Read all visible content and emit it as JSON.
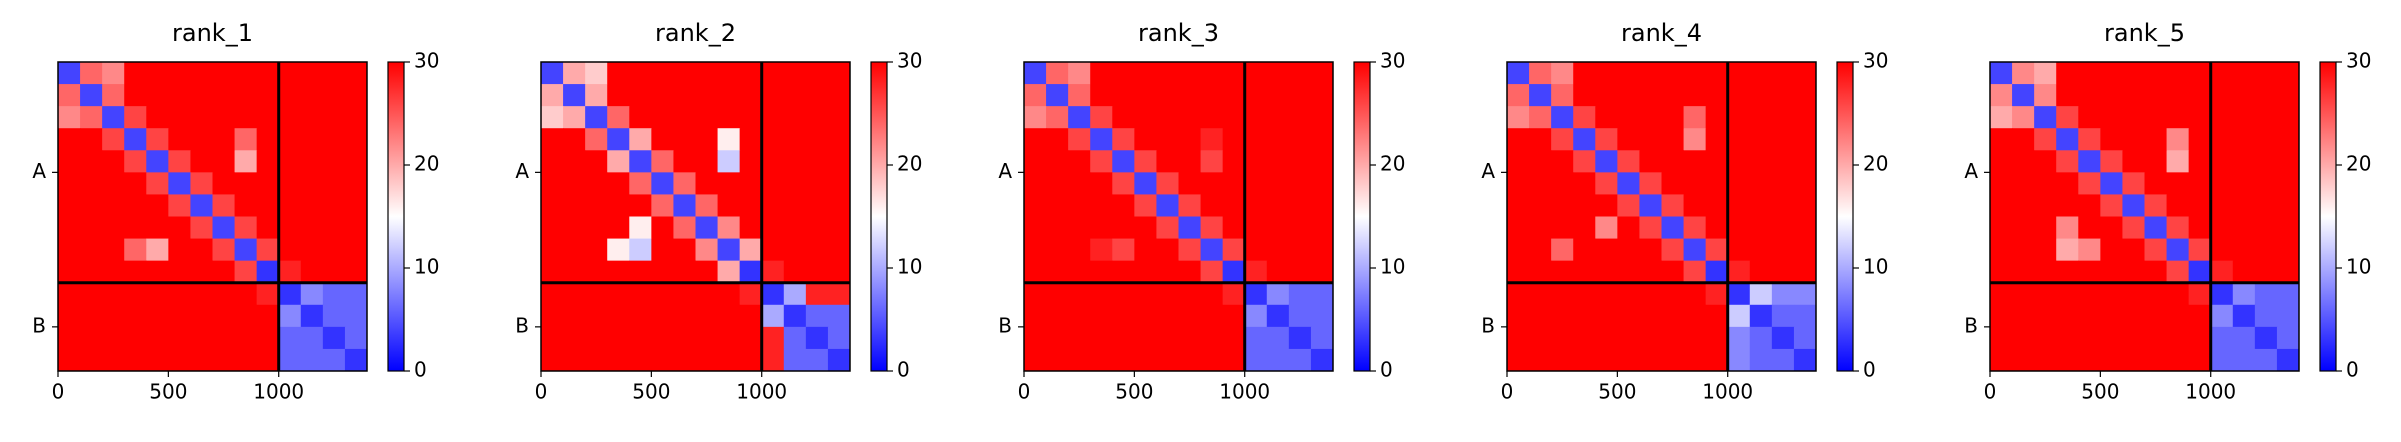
{
  "chart_data": [
    {
      "type": "heatmap",
      "title": "rank_1",
      "colormap": [
        "#0000ff",
        "#ffffff",
        "#ff0000"
      ],
      "clim": [
        0,
        30
      ],
      "cticks": [
        0,
        10,
        20,
        30
      ],
      "bins": [
        0,
        100,
        200,
        300,
        400,
        500,
        600,
        700,
        800,
        900,
        1000,
        1100,
        1200,
        1300,
        1400
      ],
      "xlim": [
        0,
        1400
      ],
      "ylim": [
        1400,
        0
      ],
      "xticks": [
        0,
        500,
        1000
      ],
      "yticks": [
        {
          "value": 500,
          "label": "A"
        },
        {
          "value": 1200,
          "label": "B"
        }
      ],
      "chain_boundaries": [
        1000
      ],
      "values": [
        [
          4,
          24,
          22,
          30,
          30,
          30,
          30,
          30,
          30,
          30,
          30,
          30,
          30,
          30
        ],
        [
          24,
          4,
          24,
          30,
          30,
          30,
          30,
          30,
          30,
          30,
          30,
          30,
          30,
          30
        ],
        [
          22,
          24,
          4,
          26,
          30,
          30,
          30,
          30,
          30,
          30,
          30,
          30,
          30,
          30
        ],
        [
          30,
          30,
          26,
          4,
          26,
          30,
          30,
          30,
          24,
          30,
          30,
          30,
          30,
          30
        ],
        [
          30,
          30,
          30,
          26,
          4,
          26,
          30,
          30,
          20,
          30,
          30,
          30,
          30,
          30
        ],
        [
          30,
          30,
          30,
          30,
          26,
          4,
          26,
          30,
          30,
          30,
          30,
          30,
          30,
          30
        ],
        [
          30,
          30,
          30,
          30,
          30,
          26,
          4,
          26,
          30,
          30,
          30,
          30,
          30,
          30
        ],
        [
          30,
          30,
          30,
          30,
          30,
          30,
          26,
          4,
          26,
          30,
          30,
          30,
          30,
          30
        ],
        [
          30,
          30,
          30,
          24,
          20,
          30,
          30,
          26,
          4,
          26,
          30,
          30,
          30,
          30
        ],
        [
          30,
          30,
          30,
          30,
          30,
          30,
          30,
          30,
          26,
          3,
          28,
          30,
          30,
          30
        ],
        [
          30,
          30,
          30,
          30,
          30,
          30,
          30,
          30,
          30,
          28,
          3,
          8,
          6,
          6
        ],
        [
          30,
          30,
          30,
          30,
          30,
          30,
          30,
          30,
          30,
          30,
          8,
          3,
          6,
          6
        ],
        [
          30,
          30,
          30,
          30,
          30,
          30,
          30,
          30,
          30,
          30,
          6,
          6,
          3,
          6
        ],
        [
          30,
          30,
          30,
          30,
          30,
          30,
          30,
          30,
          30,
          30,
          6,
          6,
          6,
          3
        ]
      ]
    },
    {
      "type": "heatmap",
      "title": "rank_2",
      "colormap": [
        "#0000ff",
        "#ffffff",
        "#ff0000"
      ],
      "clim": [
        0,
        30
      ],
      "cticks": [
        0,
        10,
        20,
        30
      ],
      "bins": [
        0,
        100,
        200,
        300,
        400,
        500,
        600,
        700,
        800,
        900,
        1000,
        1100,
        1200,
        1300,
        1400
      ],
      "xlim": [
        0,
        1400
      ],
      "ylim": [
        1400,
        0
      ],
      "xticks": [
        0,
        500,
        1000
      ],
      "yticks": [
        {
          "value": 500,
          "label": "A"
        },
        {
          "value": 1200,
          "label": "B"
        }
      ],
      "chain_boundaries": [
        1000
      ],
      "values": [
        [
          4,
          20,
          18,
          30,
          30,
          30,
          30,
          30,
          30,
          30,
          30,
          30,
          30,
          30
        ],
        [
          20,
          4,
          20,
          30,
          30,
          30,
          30,
          30,
          30,
          30,
          30,
          30,
          30,
          30
        ],
        [
          18,
          20,
          4,
          24,
          30,
          30,
          30,
          30,
          30,
          30,
          30,
          30,
          30,
          30
        ],
        [
          30,
          30,
          24,
          4,
          20,
          30,
          30,
          30,
          16,
          30,
          30,
          30,
          30,
          30
        ],
        [
          30,
          30,
          30,
          20,
          4,
          24,
          30,
          30,
          12,
          30,
          30,
          30,
          30,
          30
        ],
        [
          30,
          30,
          30,
          30,
          24,
          4,
          24,
          30,
          30,
          30,
          30,
          30,
          30,
          30
        ],
        [
          30,
          30,
          30,
          30,
          30,
          24,
          4,
          24,
          30,
          30,
          30,
          30,
          30,
          30
        ],
        [
          30,
          30,
          30,
          30,
          16,
          30,
          24,
          4,
          22,
          30,
          30,
          30,
          30,
          30
        ],
        [
          30,
          30,
          30,
          16,
          12,
          30,
          30,
          22,
          4,
          20,
          30,
          30,
          30,
          30
        ],
        [
          30,
          30,
          30,
          30,
          30,
          30,
          30,
          30,
          20,
          3,
          28,
          30,
          30,
          30
        ],
        [
          30,
          30,
          30,
          30,
          30,
          30,
          30,
          30,
          30,
          28,
          3,
          10,
          28,
          28
        ],
        [
          30,
          30,
          30,
          30,
          30,
          30,
          30,
          30,
          30,
          30,
          10,
          3,
          6,
          6
        ],
        [
          30,
          30,
          30,
          30,
          30,
          30,
          30,
          30,
          30,
          30,
          28,
          6,
          3,
          6
        ],
        [
          30,
          30,
          30,
          30,
          30,
          30,
          30,
          30,
          30,
          30,
          28,
          6,
          6,
          3
        ]
      ]
    },
    {
      "type": "heatmap",
      "title": "rank_3",
      "colormap": [
        "#0000ff",
        "#ffffff",
        "#ff0000"
      ],
      "clim": [
        0,
        30
      ],
      "cticks": [
        0,
        10,
        20,
        30
      ],
      "bins": [
        0,
        100,
        200,
        300,
        400,
        500,
        600,
        700,
        800,
        900,
        1000,
        1100,
        1200,
        1300,
        1400
      ],
      "xlim": [
        0,
        1400
      ],
      "ylim": [
        1400,
        0
      ],
      "xticks": [
        0,
        500,
        1000
      ],
      "yticks": [
        {
          "value": 500,
          "label": "A"
        },
        {
          "value": 1200,
          "label": "B"
        }
      ],
      "chain_boundaries": [
        1000
      ],
      "values": [
        [
          4,
          24,
          22,
          30,
          30,
          30,
          30,
          30,
          30,
          30,
          30,
          30,
          30,
          30
        ],
        [
          24,
          4,
          24,
          30,
          30,
          30,
          30,
          30,
          30,
          30,
          30,
          30,
          30,
          30
        ],
        [
          22,
          24,
          4,
          26,
          30,
          30,
          30,
          30,
          30,
          30,
          30,
          30,
          30,
          30
        ],
        [
          30,
          30,
          26,
          4,
          26,
          30,
          30,
          30,
          28,
          30,
          30,
          30,
          30,
          30
        ],
        [
          30,
          30,
          30,
          26,
          4,
          26,
          30,
          30,
          26,
          30,
          30,
          30,
          30,
          30
        ],
        [
          30,
          30,
          30,
          30,
          26,
          4,
          26,
          30,
          30,
          30,
          30,
          30,
          30,
          30
        ],
        [
          30,
          30,
          30,
          30,
          30,
          26,
          4,
          26,
          30,
          30,
          30,
          30,
          30,
          30
        ],
        [
          30,
          30,
          30,
          30,
          30,
          30,
          26,
          4,
          26,
          30,
          30,
          30,
          30,
          30
        ],
        [
          30,
          30,
          30,
          28,
          26,
          30,
          30,
          26,
          4,
          26,
          30,
          30,
          30,
          30
        ],
        [
          30,
          30,
          30,
          30,
          30,
          30,
          30,
          30,
          26,
          3,
          28,
          30,
          30,
          30
        ],
        [
          30,
          30,
          30,
          30,
          30,
          30,
          30,
          30,
          30,
          28,
          3,
          8,
          6,
          6
        ],
        [
          30,
          30,
          30,
          30,
          30,
          30,
          30,
          30,
          30,
          30,
          8,
          3,
          6,
          6
        ],
        [
          30,
          30,
          30,
          30,
          30,
          30,
          30,
          30,
          30,
          30,
          6,
          6,
          3,
          6
        ],
        [
          30,
          30,
          30,
          30,
          30,
          30,
          30,
          30,
          30,
          30,
          6,
          6,
          6,
          3
        ]
      ]
    },
    {
      "type": "heatmap",
      "title": "rank_4",
      "colormap": [
        "#0000ff",
        "#ffffff",
        "#ff0000"
      ],
      "clim": [
        0,
        30
      ],
      "cticks": [
        0,
        10,
        20,
        30
      ],
      "bins": [
        0,
        100,
        200,
        300,
        400,
        500,
        600,
        700,
        800,
        900,
        1000,
        1100,
        1200,
        1300,
        1400
      ],
      "xlim": [
        0,
        1400
      ],
      "ylim": [
        1400,
        0
      ],
      "xticks": [
        0,
        500,
        1000
      ],
      "yticks": [
        {
          "value": 500,
          "label": "A"
        },
        {
          "value": 1200,
          "label": "B"
        }
      ],
      "chain_boundaries": [
        1000
      ],
      "values": [
        [
          4,
          24,
          22,
          30,
          30,
          30,
          30,
          30,
          30,
          30,
          30,
          30,
          30,
          30
        ],
        [
          24,
          4,
          24,
          30,
          30,
          30,
          30,
          30,
          30,
          30,
          30,
          30,
          30,
          30
        ],
        [
          22,
          24,
          4,
          26,
          30,
          30,
          30,
          30,
          24,
          30,
          30,
          30,
          30,
          30
        ],
        [
          30,
          30,
          26,
          4,
          26,
          30,
          30,
          30,
          22,
          30,
          30,
          30,
          30,
          30
        ],
        [
          30,
          30,
          30,
          26,
          4,
          26,
          30,
          30,
          30,
          30,
          30,
          30,
          30,
          30
        ],
        [
          30,
          30,
          30,
          30,
          26,
          4,
          26,
          30,
          30,
          30,
          30,
          30,
          30,
          30
        ],
        [
          30,
          30,
          30,
          30,
          30,
          26,
          4,
          26,
          30,
          30,
          30,
          30,
          30,
          30
        ],
        [
          30,
          30,
          30,
          30,
          22,
          30,
          26,
          4,
          26,
          30,
          30,
          30,
          30,
          30
        ],
        [
          30,
          30,
          24,
          30,
          30,
          30,
          30,
          26,
          4,
          26,
          30,
          30,
          30,
          30
        ],
        [
          30,
          30,
          30,
          30,
          30,
          30,
          30,
          30,
          26,
          3,
          28,
          30,
          30,
          30
        ],
        [
          30,
          30,
          30,
          30,
          30,
          30,
          30,
          30,
          30,
          28,
          3,
          12,
          8,
          8
        ],
        [
          30,
          30,
          30,
          30,
          30,
          30,
          30,
          30,
          30,
          30,
          12,
          3,
          6,
          6
        ],
        [
          30,
          30,
          30,
          30,
          30,
          30,
          30,
          30,
          30,
          30,
          8,
          6,
          3,
          6
        ],
        [
          30,
          30,
          30,
          30,
          30,
          30,
          30,
          30,
          30,
          30,
          8,
          6,
          6,
          3
        ]
      ]
    },
    {
      "type": "heatmap",
      "title": "rank_5",
      "colormap": [
        "#0000ff",
        "#ffffff",
        "#ff0000"
      ],
      "clim": [
        0,
        30
      ],
      "cticks": [
        0,
        10,
        20,
        30
      ],
      "bins": [
        0,
        100,
        200,
        300,
        400,
        500,
        600,
        700,
        800,
        900,
        1000,
        1100,
        1200,
        1300,
        1400
      ],
      "xlim": [
        0,
        1400
      ],
      "ylim": [
        1400,
        0
      ],
      "xticks": [
        0,
        500,
        1000
      ],
      "yticks": [
        {
          "value": 500,
          "label": "A"
        },
        {
          "value": 1200,
          "label": "B"
        }
      ],
      "chain_boundaries": [
        1000
      ],
      "values": [
        [
          4,
          22,
          20,
          30,
          30,
          30,
          30,
          30,
          30,
          30,
          30,
          30,
          30,
          30
        ],
        [
          22,
          4,
          22,
          30,
          30,
          30,
          30,
          30,
          30,
          30,
          30,
          30,
          30,
          30
        ],
        [
          20,
          22,
          4,
          26,
          30,
          30,
          30,
          30,
          30,
          30,
          30,
          30,
          30,
          30
        ],
        [
          30,
          30,
          26,
          4,
          26,
          30,
          30,
          30,
          22,
          30,
          30,
          30,
          30,
          30
        ],
        [
          30,
          30,
          30,
          26,
          4,
          26,
          30,
          30,
          20,
          30,
          30,
          30,
          30,
          30
        ],
        [
          30,
          30,
          30,
          30,
          26,
          4,
          26,
          30,
          30,
          30,
          30,
          30,
          30,
          30
        ],
        [
          30,
          30,
          30,
          30,
          30,
          26,
          4,
          26,
          30,
          30,
          30,
          30,
          30,
          30
        ],
        [
          30,
          30,
          30,
          22,
          30,
          30,
          26,
          4,
          26,
          30,
          30,
          30,
          30,
          30
        ],
        [
          30,
          30,
          30,
          20,
          22,
          30,
          30,
          26,
          4,
          26,
          30,
          30,
          30,
          30
        ],
        [
          30,
          30,
          30,
          30,
          30,
          30,
          30,
          30,
          26,
          3,
          28,
          30,
          30,
          30
        ],
        [
          30,
          30,
          30,
          30,
          30,
          30,
          30,
          30,
          30,
          28,
          3,
          8,
          6,
          6
        ],
        [
          30,
          30,
          30,
          30,
          30,
          30,
          30,
          30,
          30,
          30,
          8,
          3,
          6,
          6
        ],
        [
          30,
          30,
          30,
          30,
          30,
          30,
          30,
          30,
          30,
          30,
          6,
          6,
          3,
          6
        ],
        [
          30,
          30,
          30,
          30,
          30,
          30,
          30,
          30,
          30,
          30,
          6,
          6,
          6,
          3
        ]
      ]
    }
  ]
}
